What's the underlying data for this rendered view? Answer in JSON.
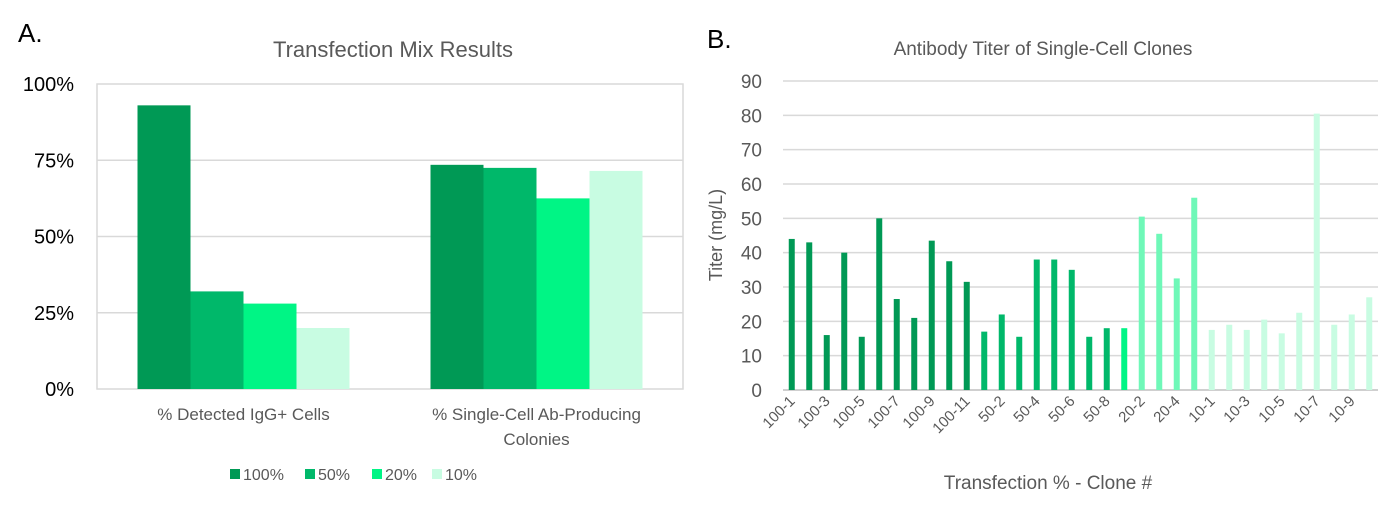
{
  "chart_data": [
    {
      "panel_label": "A.",
      "type": "bar",
      "title": "Transfection Mix Results",
      "categories": [
        "% Detected IgG+ Cells",
        "% Single-Cell Ab-Producing Colonies"
      ],
      "category_lines": [
        [
          "% Detected IgG+ Cells"
        ],
        [
          "% Single-Cell Ab-Producing",
          "Colonies"
        ]
      ],
      "series": [
        {
          "name": "100%",
          "color": "#009955",
          "values": [
            93,
            73.5
          ]
        },
        {
          "name": "50%",
          "color": "#00b86a",
          "values": [
            32,
            72.5
          ]
        },
        {
          "name": "20%",
          "color": "#00f585",
          "values": [
            28,
            62.5
          ]
        },
        {
          "name": "10%",
          "color": "#c8fce2",
          "values": [
            20,
            71.5
          ]
        }
      ],
      "ylim": [
        0,
        100
      ],
      "yticks": [
        "0%",
        "25%",
        "50%",
        "75%",
        "100%"
      ],
      "ytick_values": [
        0,
        25,
        50,
        75,
        100
      ],
      "grid": true,
      "legend": "bottom"
    },
    {
      "panel_label": "B.",
      "type": "bar",
      "title": "Antibody Titer of Single-Cell Clones",
      "xlabel": "Transfection % - Clone #",
      "ylabel": "Titer (mg/L)",
      "ylim": [
        0,
        90
      ],
      "yticks": [
        "0",
        "10",
        "20",
        "30",
        "40",
        "50",
        "60",
        "70",
        "80",
        "90"
      ],
      "ytick_values": [
        0,
        10,
        20,
        30,
        40,
        50,
        60,
        70,
        80,
        90
      ],
      "grid": true,
      "categories": [
        "100-1",
        "100-2",
        "100-3",
        "100-4",
        "100-5",
        "100-6",
        "100-7",
        "100-8",
        "100-9",
        "100-10",
        "100-11",
        "50-1",
        "50-2",
        "50-3",
        "50-4",
        "50-5",
        "50-6",
        "50-7",
        "50-8",
        "20-1",
        "20-2",
        "20-3",
        "20-4",
        "20-5",
        "10-1",
        "10-2",
        "10-3",
        "10-4",
        "10-5",
        "10-6",
        "10-7",
        "10-8",
        "10-9",
        "10-10"
      ],
      "visible_tick_labels": [
        "100-1",
        "100-3",
        "100-5",
        "100-7",
        "100-9",
        "100-11",
        "50-2",
        "50-4",
        "50-6",
        "50-8",
        "20-2",
        "20-4",
        "10-1",
        "10-3",
        "10-5",
        "10-7",
        "10-9"
      ],
      "values": [
        44,
        43,
        16,
        40,
        15.5,
        50,
        26.5,
        21,
        43.5,
        37.5,
        31.5,
        17,
        22,
        15.5,
        38,
        38,
        35,
        15.5,
        18,
        18,
        50.5,
        45.5,
        32.5,
        56,
        17.5,
        19,
        17.5,
        20.5,
        16.5,
        22.5,
        80.5,
        19,
        22,
        27
      ],
      "colors": [
        "#009955",
        "#009955",
        "#009955",
        "#009955",
        "#009955",
        "#009955",
        "#009955",
        "#009955",
        "#009955",
        "#009955",
        "#009955",
        "#00b86a",
        "#00b86a",
        "#00b86a",
        "#00b86a",
        "#00b86a",
        "#00b86a",
        "#00b86a",
        "#00b86a",
        "#00f585",
        "#6ff8b8",
        "#6ff8b8",
        "#6ff8b8",
        "#6ff8b8",
        "#c8fce2",
        "#c8fce2",
        "#c8fce2",
        "#c8fce2",
        "#c8fce2",
        "#c8fce2",
        "#c8fce2",
        "#c8fce2",
        "#c8fce2",
        "#c8fce2"
      ]
    }
  ]
}
